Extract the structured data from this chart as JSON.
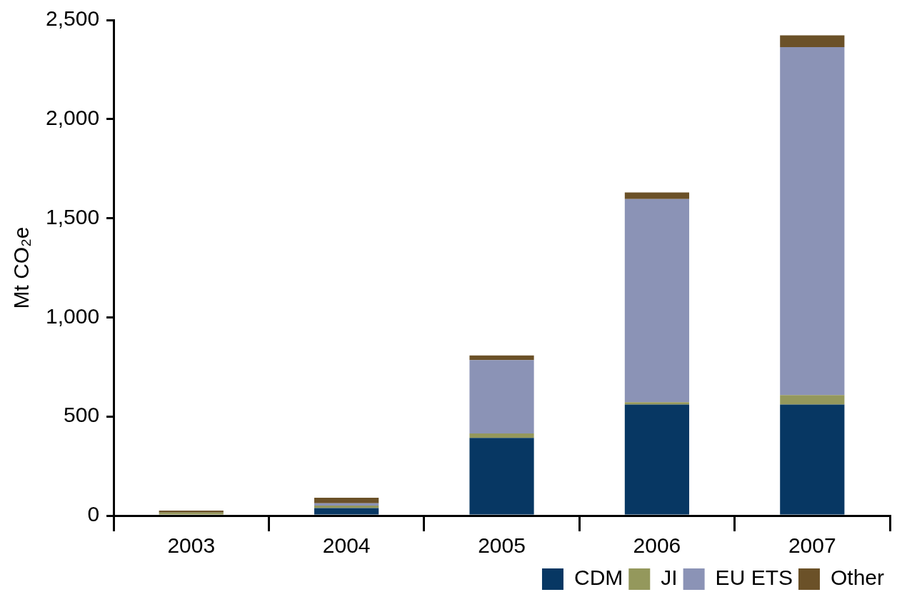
{
  "chart_data": {
    "type": "bar",
    "stacked": true,
    "ylabel": "Mt CO₂e",
    "categories": [
      "2003",
      "2004",
      "2005",
      "2006",
      "2007"
    ],
    "series": [
      {
        "name": "CDM",
        "color": "#073763",
        "values": [
          0,
          38,
          392,
          560,
          560
        ]
      },
      {
        "name": "JI",
        "color": "#94985c",
        "values": [
          15,
          12,
          22,
          12,
          48
        ]
      },
      {
        "name": "EU ETS",
        "color": "#8b93b6",
        "values": [
          0,
          12,
          370,
          1025,
          1755
        ]
      },
      {
        "name": "Other",
        "color": "#6b5128",
        "values": [
          10,
          28,
          24,
          33,
          60
        ]
      }
    ],
    "ylim": [
      0,
      2500
    ],
    "yticks": [
      {
        "value": 0,
        "label": "0"
      },
      {
        "value": 500,
        "label": "500"
      },
      {
        "value": 1000,
        "label": "1,000"
      },
      {
        "value": 1500,
        "label": "1,500"
      },
      {
        "value": 2000,
        "label": "2,000"
      },
      {
        "value": 2500,
        "label": "2,500"
      }
    ],
    "grid": false,
    "legend": "bottom right"
  }
}
